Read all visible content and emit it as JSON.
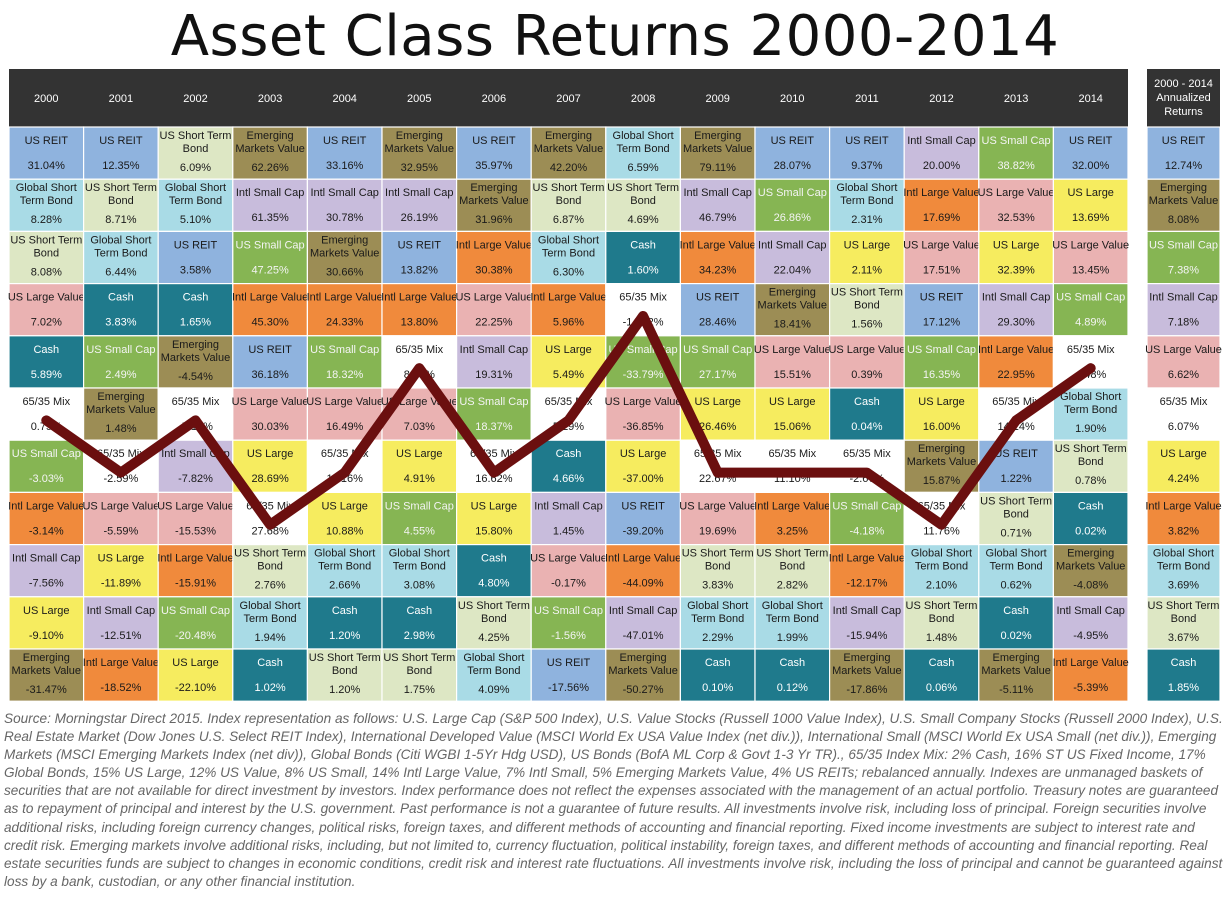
{
  "title": "Asset Class Returns 2000-2014",
  "annualized_header": [
    "2000 - 2014",
    "Annualized",
    "Returns"
  ],
  "footnote": "Source: Morningstar Direct 2015. Index representation as follows: U.S. Large Cap (S&P 500 Index), U.S. Value Stocks (Russell 1000 Value Index), U.S. Small Company Stocks (Russell 2000 Index), U.S. Real Estate Market (Dow Jones U.S. Select REIT Index), International Developed Value (MSCI World Ex USA Value Index (net div.)), International Small (MSCI World Ex USA Small (net div.)), Emerging Markets (MSCI Emerging Markets Index (net div)), Global Bonds (Citi WGBI 1-5Yr Hdg USD), US Bonds (BofA ML Corp & Govt 1-3 Yr TR)., 65/35 Index Mix: 2% Cash, 16% ST US Fixed Income, 17% Global Bonds, 15% US Large, 12% US Value, 8% US Small, 14% Intl Large Value, 7% Intl Small, 5% Emerging Markets Value, 4% US REITs; rebalanced annually. Indexes are unmanaged baskets of securities that are not available for direct investment by investors. Index performance does not reflect the expenses associated with the management of an actual portfolio. Treasury notes are guaranteed as to repayment of principal and interest by the U.S. government. Past performance is not a guarantee of future results. All investments involve risk, including loss of principal. Foreign securities involve additional risks, including foreign currency changes, political risks, foreign taxes, and different methods of accounting and financial reporting. Fixed income investments are subject to interest rate and credit risk. Emerging markets involve additional risks, including, but not limited to, currency fluctuation, political instability, foreign taxes, and different methods of accounting and financial reporting. Real estate securities funds are subject to changes in economic conditions, credit risk and interest rate fluctuations. All investments involve risk, including the loss of principal and cannot be guaranteed against loss by a bank, custodian, or any other financial institution.",
  "chart_data": {
    "type": "table",
    "title": "Asset Class Returns 2000-2014",
    "highlight_series": "65/35 Mix",
    "highlight_line_color": "#6b0f0f",
    "header_color": "#333333",
    "asset_colors": {
      "US REIT": "#8fb3de",
      "Global Short Term Bond": "#a9dbe6",
      "US Short Term Bond": "#dde7c4",
      "US Large Value": "#eab2b2",
      "Cash": "#1f7a8c",
      "65/35 Mix": "#ffffff",
      "US Small Cap": "#86b553",
      "Intl Small Cap": "#c8bcdc",
      "Intl Large Value": "#f08a3c",
      "US Large": "#f6ec5f",
      "Emerging Markets Value": "#9c8d55"
    },
    "years": [
      "2000",
      "2001",
      "2002",
      "2003",
      "2004",
      "2005",
      "2006",
      "2007",
      "2008",
      "2009",
      "2010",
      "2011",
      "2012",
      "2013",
      "2014"
    ],
    "columns": [
      [
        [
          "US REIT",
          "31.04%"
        ],
        [
          "Global Short Term Bond",
          "8.28%"
        ],
        [
          "US Short Term Bond",
          "8.08%"
        ],
        [
          "US Large Value",
          "7.02%"
        ],
        [
          "Cash",
          "5.89%"
        ],
        [
          "65/35 Mix",
          "0.75%"
        ],
        [
          "US Small Cap",
          "-3.03%"
        ],
        [
          "Intl Large Value",
          "-3.14%"
        ],
        [
          "Intl Small Cap",
          "-7.56%"
        ],
        [
          "US Large",
          "-9.10%"
        ],
        [
          "Emerging Markets Value",
          "-31.47%"
        ]
      ],
      [
        [
          "US REIT",
          "12.35%"
        ],
        [
          "US Short Term Bond",
          "8.71%"
        ],
        [
          "Global Short Term Bond",
          "6.44%"
        ],
        [
          "Cash",
          "3.83%"
        ],
        [
          "US Small Cap",
          "2.49%"
        ],
        [
          "Emerging Markets Value",
          "1.48%"
        ],
        [
          "65/35 Mix",
          "-2.59%"
        ],
        [
          "US Large Value",
          "-5.59%"
        ],
        [
          "US Large",
          "-11.89%"
        ],
        [
          "Intl Small Cap",
          "-12.51%"
        ],
        [
          "Intl Large Value",
          "-18.52%"
        ]
      ],
      [
        [
          "US Short Term Bond",
          "6.09%"
        ],
        [
          "Global Short Term Bond",
          "5.10%"
        ],
        [
          "US REIT",
          "3.58%"
        ],
        [
          "Cash",
          "1.65%"
        ],
        [
          "Emerging Markets Value",
          "-4.54%"
        ],
        [
          "65/35 Mix",
          "-5.18%"
        ],
        [
          "Intl Small Cap",
          "-7.82%"
        ],
        [
          "US Large Value",
          "-15.53%"
        ],
        [
          "Intl Large Value",
          "-15.91%"
        ],
        [
          "US Small Cap",
          "-20.48%"
        ],
        [
          "US Large",
          "-22.10%"
        ]
      ],
      [
        [
          "Emerging Markets Value",
          "62.26%"
        ],
        [
          "Intl Small Cap",
          "61.35%"
        ],
        [
          "US Small Cap",
          "47.25%"
        ],
        [
          "Intl Large Value",
          "45.30%"
        ],
        [
          "US REIT",
          "36.18%"
        ],
        [
          "US Large Value",
          "30.03%"
        ],
        [
          "US Large",
          "28.69%"
        ],
        [
          "65/35 Mix",
          "27.68%"
        ],
        [
          "US Short Term Bond",
          "2.76%"
        ],
        [
          "Global Short Term Bond",
          "1.94%"
        ],
        [
          "Cash",
          "1.02%"
        ]
      ],
      [
        [
          "US REIT",
          "33.16%"
        ],
        [
          "Intl Small Cap",
          "30.78%"
        ],
        [
          "Emerging Markets Value",
          "30.66%"
        ],
        [
          "Intl Large Value",
          "24.33%"
        ],
        [
          "US Small Cap",
          "18.32%"
        ],
        [
          "US Large Value",
          "16.49%"
        ],
        [
          "65/35 Mix",
          "11.16%"
        ],
        [
          "US Large",
          "10.88%"
        ],
        [
          "Global Short Term Bond",
          "2.66%"
        ],
        [
          "Cash",
          "1.20%"
        ],
        [
          "US Short Term Bond",
          "1.20%"
        ]
      ],
      [
        [
          "Emerging Markets Value",
          "32.95%"
        ],
        [
          "Intl Small Cap",
          "26.19%"
        ],
        [
          "US REIT",
          "13.82%"
        ],
        [
          "Intl Large Value",
          "13.80%"
        ],
        [
          "65/35 Mix",
          "8.01%"
        ],
        [
          "US Large Value",
          "7.03%"
        ],
        [
          "US Large",
          "4.91%"
        ],
        [
          "US Small Cap",
          "4.55%"
        ],
        [
          "Global Short Term Bond",
          "3.08%"
        ],
        [
          "Cash",
          "2.98%"
        ],
        [
          "US Short Term Bond",
          "1.75%"
        ]
      ],
      [
        [
          "US REIT",
          "35.97%"
        ],
        [
          "Emerging Markets Value",
          "31.96%"
        ],
        [
          "Intl Large Value",
          "30.38%"
        ],
        [
          "US Large Value",
          "22.25%"
        ],
        [
          "Intl Small Cap",
          "19.31%"
        ],
        [
          "US Small Cap",
          "18.37%"
        ],
        [
          "65/35 Mix",
          "16.62%"
        ],
        [
          "US Large",
          "15.80%"
        ],
        [
          "Cash",
          "4.80%"
        ],
        [
          "US Short Term Bond",
          "4.25%"
        ],
        [
          "Global Short Term Bond",
          "4.09%"
        ]
      ],
      [
        [
          "Emerging Markets Value",
          "42.20%"
        ],
        [
          "US Short Term Bond",
          "6.87%"
        ],
        [
          "Global Short Term Bond",
          "6.30%"
        ],
        [
          "Intl Large Value",
          "5.96%"
        ],
        [
          "US Large",
          "5.49%"
        ],
        [
          "65/35 Mix",
          "5.29%"
        ],
        [
          "Cash",
          "4.66%"
        ],
        [
          "Intl Small Cap",
          "1.45%"
        ],
        [
          "US Large Value",
          "-0.17%"
        ],
        [
          "US Small Cap",
          "-1.56%"
        ],
        [
          "US REIT",
          "-17.56%"
        ]
      ],
      [
        [
          "Global Short Term Bond",
          "6.59%"
        ],
        [
          "US Short Term Bond",
          "4.69%"
        ],
        [
          "Cash",
          "1.60%"
        ],
        [
          "65/35 Mix",
          "-14.32%"
        ],
        [
          "US Small Cap",
          "-33.79%"
        ],
        [
          "US Large Value",
          "-36.85%"
        ],
        [
          "US Large",
          "-37.00%"
        ],
        [
          "US REIT",
          "-39.20%"
        ],
        [
          "Intl Large Value",
          "-44.09%"
        ],
        [
          "Intl Small Cap",
          "-47.01%"
        ],
        [
          "Emerging Markets Value",
          "-50.27%"
        ]
      ],
      [
        [
          "Emerging Markets Value",
          "79.11%"
        ],
        [
          "Intl Small Cap",
          "46.79%"
        ],
        [
          "Intl Large Value",
          "34.23%"
        ],
        [
          "US REIT",
          "28.46%"
        ],
        [
          "US Small Cap",
          "27.17%"
        ],
        [
          "US Large",
          "26.46%"
        ],
        [
          "65/35 Mix",
          "22.67%"
        ],
        [
          "US Large Value",
          "19.69%"
        ],
        [
          "US Short Term Bond",
          "3.83%"
        ],
        [
          "Global Short Term Bond",
          "2.29%"
        ],
        [
          "Cash",
          "0.10%"
        ]
      ],
      [
        [
          "US REIT",
          "28.07%"
        ],
        [
          "US Small Cap",
          "26.86%"
        ],
        [
          "Intl Small Cap",
          "22.04%"
        ],
        [
          "Emerging Markets Value",
          "18.41%"
        ],
        [
          "US Large Value",
          "15.51%"
        ],
        [
          "US Large",
          "15.06%"
        ],
        [
          "65/35 Mix",
          "11.10%"
        ],
        [
          "Intl Large Value",
          "3.25%"
        ],
        [
          "US Short Term Bond",
          "2.82%"
        ],
        [
          "Global Short Term Bond",
          "1.99%"
        ],
        [
          "Cash",
          "0.12%"
        ]
      ],
      [
        [
          "US REIT",
          "9.37%"
        ],
        [
          "Global Short Term Bond",
          "2.31%"
        ],
        [
          "US Large",
          "2.11%"
        ],
        [
          "US Short Term Bond",
          "1.56%"
        ],
        [
          "US Large Value",
          "0.39%"
        ],
        [
          "Cash",
          "0.04%"
        ],
        [
          "65/35 Mix",
          "-2.67%"
        ],
        [
          "US Small Cap",
          "-4.18%"
        ],
        [
          "Intl Large Value",
          "-12.17%"
        ],
        [
          "Intl Small Cap",
          "-15.94%"
        ],
        [
          "Emerging Markets Value",
          "-17.86%"
        ]
      ],
      [
        [
          "Intl Small Cap",
          "20.00%"
        ],
        [
          "Intl Large Value",
          "17.69%"
        ],
        [
          "US Large Value",
          "17.51%"
        ],
        [
          "US REIT",
          "17.12%"
        ],
        [
          "US Small Cap",
          "16.35%"
        ],
        [
          "US Large",
          "16.00%"
        ],
        [
          "Emerging Markets Value",
          "15.87%"
        ],
        [
          "65/35 Mix",
          "11.76%"
        ],
        [
          "Global Short Term Bond",
          "2.10%"
        ],
        [
          "US Short Term Bond",
          "1.48%"
        ],
        [
          "Cash",
          "0.06%"
        ]
      ],
      [
        [
          "US Small Cap",
          "38.82%"
        ],
        [
          "US Large Value",
          "32.53%"
        ],
        [
          "US Large",
          "32.39%"
        ],
        [
          "Intl Small Cap",
          "29.30%"
        ],
        [
          "Intl Large Value",
          "22.95%"
        ],
        [
          "65/35 Mix",
          "14.14%"
        ],
        [
          "US REIT",
          "1.22%"
        ],
        [
          "US Short Term Bond",
          "0.71%"
        ],
        [
          "Global Short Term Bond",
          "0.62%"
        ],
        [
          "Cash",
          "0.02%"
        ],
        [
          "Emerging Markets Value",
          "-5.11%"
        ]
      ],
      [
        [
          "US REIT",
          "32.00%"
        ],
        [
          "US Large",
          "13.69%"
        ],
        [
          "US Large Value",
          "13.45%"
        ],
        [
          "US Small Cap",
          "4.89%"
        ],
        [
          "65/35 Mix",
          "4.48%"
        ],
        [
          "Global Short Term Bond",
          "1.90%"
        ],
        [
          "US Short Term Bond",
          "0.78%"
        ],
        [
          "Cash",
          "0.02%"
        ],
        [
          "Emerging Markets Value",
          "-4.08%"
        ],
        [
          "Intl Small Cap",
          "-4.95%"
        ],
        [
          "Intl Large Value",
          "-5.39%"
        ]
      ]
    ],
    "annualized": [
      [
        "US REIT",
        "12.74%"
      ],
      [
        "Emerging Markets Value",
        "8.08%"
      ],
      [
        "US Small Cap",
        "7.38%"
      ],
      [
        "Intl Small Cap",
        "7.18%"
      ],
      [
        "US Large Value",
        "6.62%"
      ],
      [
        "65/35 Mix",
        "6.07%"
      ],
      [
        "US Large",
        "4.24%"
      ],
      [
        "Intl Large Value",
        "3.82%"
      ],
      [
        "Global Short Term Bond",
        "3.69%"
      ],
      [
        "US Short Term Bond",
        "3.67%"
      ],
      [
        "Cash",
        "1.85%"
      ]
    ]
  }
}
